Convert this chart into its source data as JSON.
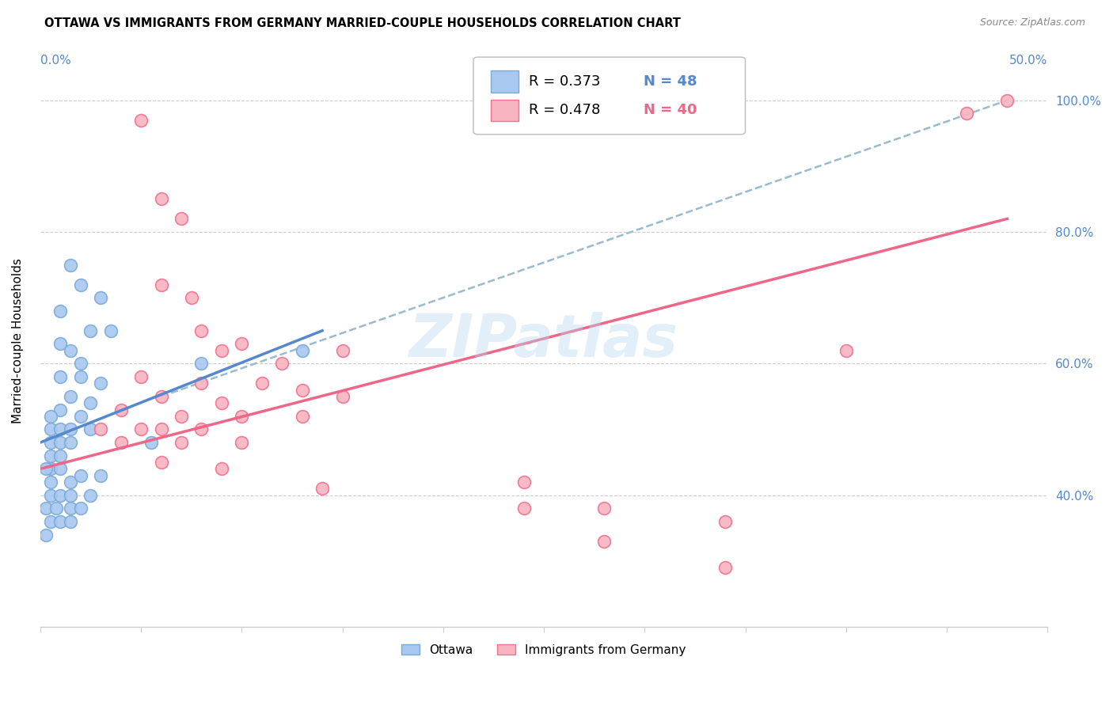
{
  "title": "OTTAWA VS IMMIGRANTS FROM GERMANY MARRIED-COUPLE HOUSEHOLDS CORRELATION CHART",
  "source": "Source: ZipAtlas.com",
  "ylabel": "Married-couple Households",
  "xlim": [
    0.0,
    50.0
  ],
  "ylim": [
    20.0,
    107.0
  ],
  "ytick_values": [
    40.0,
    60.0,
    80.0,
    100.0
  ],
  "watermark": "ZIPatlas",
  "legend_blue_r": "R = 0.373",
  "legend_blue_n": "N = 48",
  "legend_pink_r": "R = 0.478",
  "legend_pink_n": "N = 40",
  "blue_color": "#A8C8F0",
  "pink_color": "#F8B4C0",
  "blue_edge_color": "#7AAAD8",
  "pink_edge_color": "#F07090",
  "blue_line_color": "#5588CC",
  "pink_line_color": "#EE6688",
  "dashed_line_color": "#99BBCC",
  "blue_scatter": [
    [
      1.0,
      68
    ],
    [
      2.0,
      72
    ],
    [
      1.5,
      75
    ],
    [
      3.0,
      70
    ],
    [
      1.0,
      63
    ],
    [
      2.5,
      65
    ],
    [
      1.5,
      62
    ],
    [
      2.0,
      60
    ],
    [
      3.5,
      65
    ],
    [
      1.0,
      58
    ],
    [
      2.0,
      58
    ],
    [
      3.0,
      57
    ],
    [
      1.5,
      55
    ],
    [
      2.5,
      54
    ],
    [
      1.0,
      53
    ],
    [
      0.5,
      52
    ],
    [
      0.5,
      50
    ],
    [
      1.0,
      50
    ],
    [
      1.5,
      50
    ],
    [
      2.0,
      52
    ],
    [
      0.5,
      48
    ],
    [
      1.0,
      48
    ],
    [
      1.5,
      48
    ],
    [
      2.5,
      50
    ],
    [
      0.5,
      46
    ],
    [
      1.0,
      46
    ],
    [
      0.5,
      44
    ],
    [
      1.0,
      44
    ],
    [
      0.3,
      44
    ],
    [
      0.5,
      42
    ],
    [
      1.5,
      42
    ],
    [
      2.0,
      43
    ],
    [
      0.5,
      40
    ],
    [
      1.0,
      40
    ],
    [
      1.5,
      40
    ],
    [
      2.5,
      40
    ],
    [
      0.3,
      38
    ],
    [
      0.8,
      38
    ],
    [
      1.5,
      38
    ],
    [
      2.0,
      38
    ],
    [
      0.5,
      36
    ],
    [
      1.0,
      36
    ],
    [
      0.3,
      34
    ],
    [
      1.5,
      36
    ],
    [
      3.0,
      43
    ],
    [
      5.5,
      48
    ],
    [
      8.0,
      60
    ],
    [
      13.0,
      62
    ]
  ],
  "pink_scatter": [
    [
      5.0,
      97
    ],
    [
      48.0,
      100
    ],
    [
      46.0,
      98
    ],
    [
      6.0,
      85
    ],
    [
      7.0,
      82
    ],
    [
      6.0,
      72
    ],
    [
      7.5,
      70
    ],
    [
      8.0,
      65
    ],
    [
      10.0,
      63
    ],
    [
      9.0,
      62
    ],
    [
      12.0,
      60
    ],
    [
      15.0,
      62
    ],
    [
      40.0,
      62
    ],
    [
      5.0,
      58
    ],
    [
      8.0,
      57
    ],
    [
      11.0,
      57
    ],
    [
      13.0,
      56
    ],
    [
      6.0,
      55
    ],
    [
      9.0,
      54
    ],
    [
      15.0,
      55
    ],
    [
      4.0,
      53
    ],
    [
      7.0,
      52
    ],
    [
      10.0,
      52
    ],
    [
      13.0,
      52
    ],
    [
      5.0,
      50
    ],
    [
      8.0,
      50
    ],
    [
      3.0,
      50
    ],
    [
      6.0,
      50
    ],
    [
      4.0,
      48
    ],
    [
      7.0,
      48
    ],
    [
      10.0,
      48
    ],
    [
      6.0,
      45
    ],
    [
      9.0,
      44
    ],
    [
      14.0,
      41
    ],
    [
      24.0,
      42
    ],
    [
      24.0,
      38
    ],
    [
      28.0,
      38
    ],
    [
      28.0,
      33
    ],
    [
      34.0,
      36
    ],
    [
      34.0,
      29
    ]
  ],
  "blue_trendline": [
    [
      0.0,
      48.0
    ],
    [
      14.0,
      65.0
    ]
  ],
  "pink_trendline": [
    [
      0.0,
      44.0
    ],
    [
      48.0,
      82.0
    ]
  ],
  "dashed_trendline": [
    [
      6.0,
      55.0
    ],
    [
      48.0,
      100.0
    ]
  ]
}
